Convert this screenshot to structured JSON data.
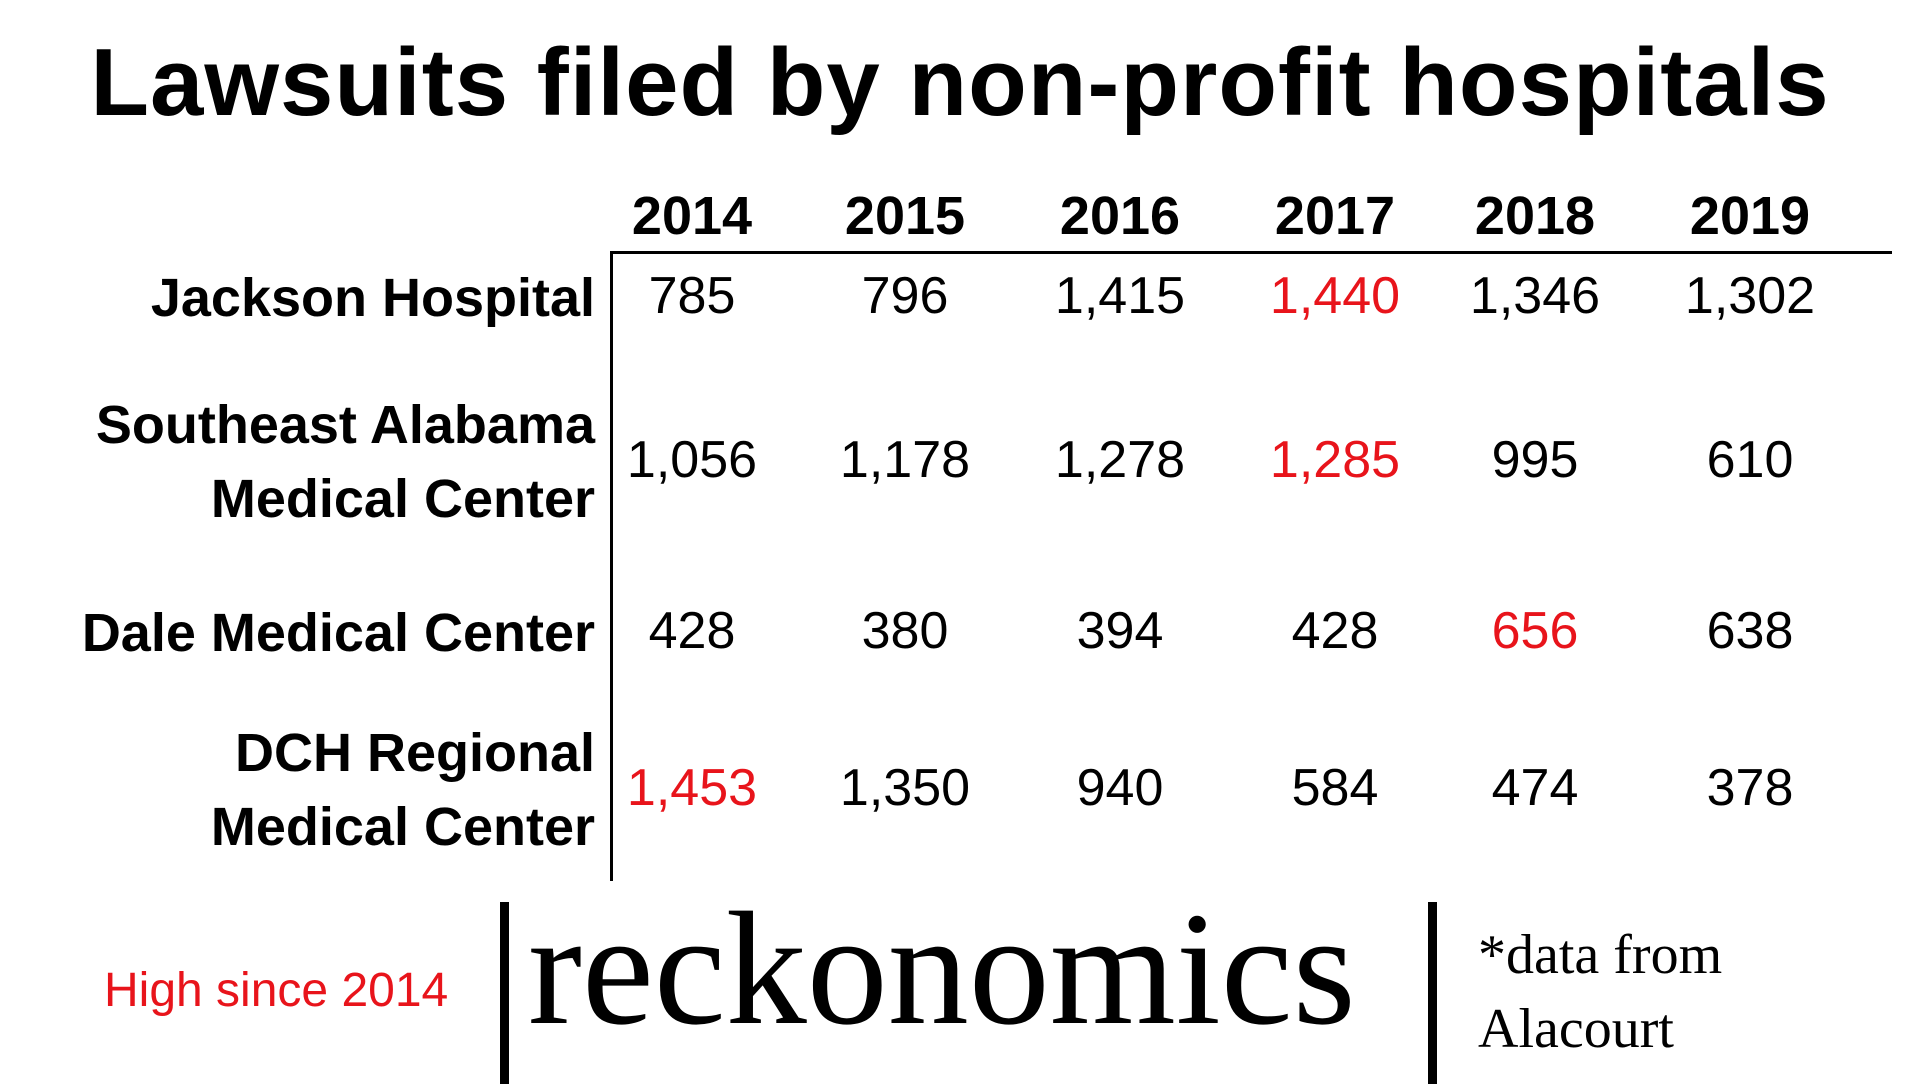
{
  "title": "Lawsuits filed by non-profit hospitals",
  "legend_note": "High since 2014",
  "brand": "reckonomics",
  "source_lines": [
    "*data from",
    "Alacourt"
  ],
  "colors": {
    "text": "#000000",
    "highlight": "#e8141b",
    "background": "#ffffff"
  },
  "chart_data": {
    "type": "table",
    "title": "Lawsuits filed by non-profit hospitals",
    "columns": [
      "2014",
      "2015",
      "2016",
      "2017",
      "2018",
      "2019"
    ],
    "rows": [
      {
        "label_lines": [
          "Jackson Hospital"
        ],
        "values": [
          "785",
          "796",
          "1,415",
          "1,440",
          "1,346",
          "1,302"
        ],
        "numeric": [
          785,
          796,
          1415,
          1440,
          1346,
          1302
        ],
        "high_index": 3
      },
      {
        "label_lines": [
          "Southeast Alabama",
          "Medical Center"
        ],
        "values": [
          "1,056",
          "1,178",
          "1,278",
          "1,285",
          "995",
          "610"
        ],
        "numeric": [
          1056,
          1178,
          1278,
          1285,
          995,
          610
        ],
        "high_index": 3
      },
      {
        "label_lines": [
          "Dale Medical Center"
        ],
        "values": [
          "428",
          "380",
          "394",
          "428",
          "656",
          "638"
        ],
        "numeric": [
          428,
          380,
          394,
          428,
          656,
          638
        ],
        "high_index": 4
      },
      {
        "label_lines": [
          "DCH Regional",
          "Medical Center"
        ],
        "values": [
          "1,453",
          "1,350",
          "940",
          "584",
          "474",
          "378"
        ],
        "numeric": [
          1453,
          1350,
          940,
          584,
          474,
          378
        ],
        "high_index": 0
      }
    ]
  }
}
